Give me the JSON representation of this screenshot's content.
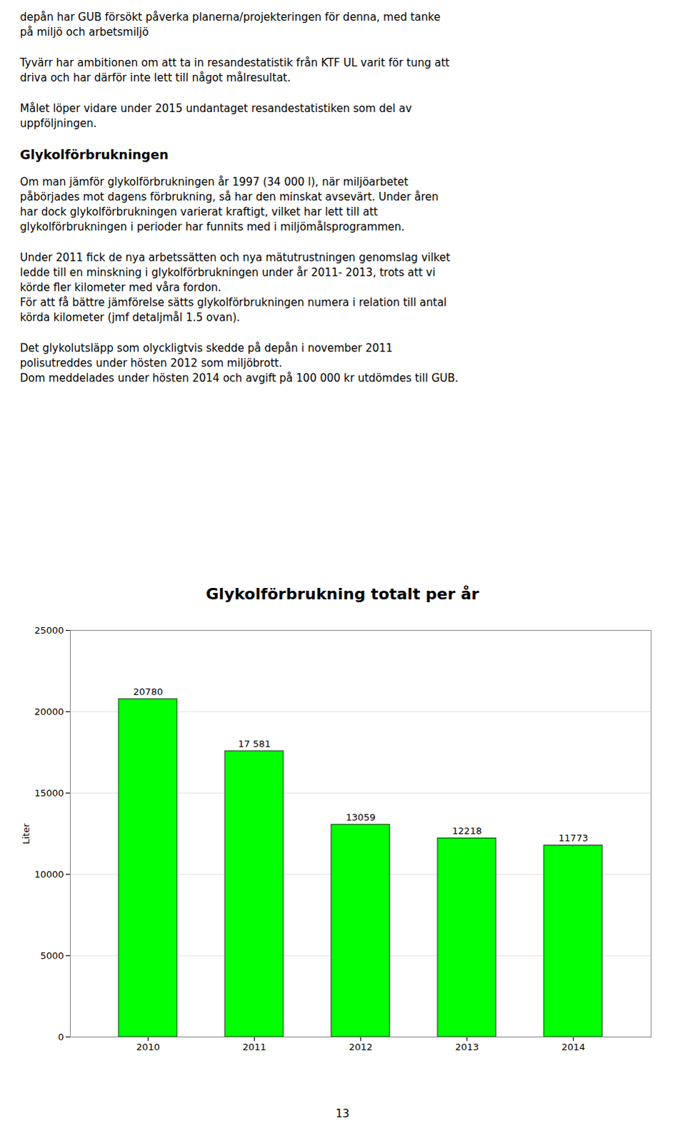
{
  "chart_data": {
    "type": "bar",
    "title": "Glykolförbrukning totalt per år",
    "categories": [
      "2010",
      "2011",
      "2012",
      "2013",
      "2014"
    ],
    "values": [
      20780,
      17581,
      13059,
      12218,
      11773
    ],
    "value_labels": [
      "20780",
      "17 581",
      "13059",
      "12218",
      "11773"
    ],
    "data_labels": true,
    "color": "#00FF00",
    "ylabel": "Liter",
    "ylim": [
      0,
      25000
    ],
    "yticks": [
      0,
      5000,
      10000,
      15000,
      20000,
      25000
    ],
    "grid": true,
    "annotations": [
      "depån har GUB försökt påverka planerna/projekteringen för denna, med tanke\npå miljö och arbetsmiljö",
      "Tyvärr har ambitionen om att ta in resandestatistik från KTF UL varit för tung att\ndriva och har därför inte lett till något målresultat.",
      "Målet löper vidare under 2015 undantaget resandestatistiken som del av\nuppföljningen.",
      "Glykolförbrukningen",
      "Om man jämför glykolförbrukningen år 1997 (34 000 l), när miljöarbetet\npåbörjades mot dagens förbrukning, så har den minskat avsevärt. Under åren\nhar dock glykolförbrukningen varierat kraftigt, vilket har lett till att\nglykolförbrukningen i perioder har funnits med i miljömålsprogrammen.",
      "Under 2011 fick de nya arbetssätten och nya mätutrustningen genomslag vilket\nledde till en minskning i glykolförbrukningen under år 2011- 2013, trots att vi\nkörde fler kilometer med våra fordon.\nFör att få bättre jämförelse sätts glykolförbrukningen numera i relation till antal\nkörda kilometer (jmf detaljmål 1.5 ovan).",
      "Det glykolutsläpp som olyckligtvis skedde på depån i november 2011\npolisutreddes under hösten 2012 som miljöbrott.\nDom meddelades under hösten 2014 och avgift på 100 000 kr utdömdes till GUB.",
      "13"
    ]
  }
}
